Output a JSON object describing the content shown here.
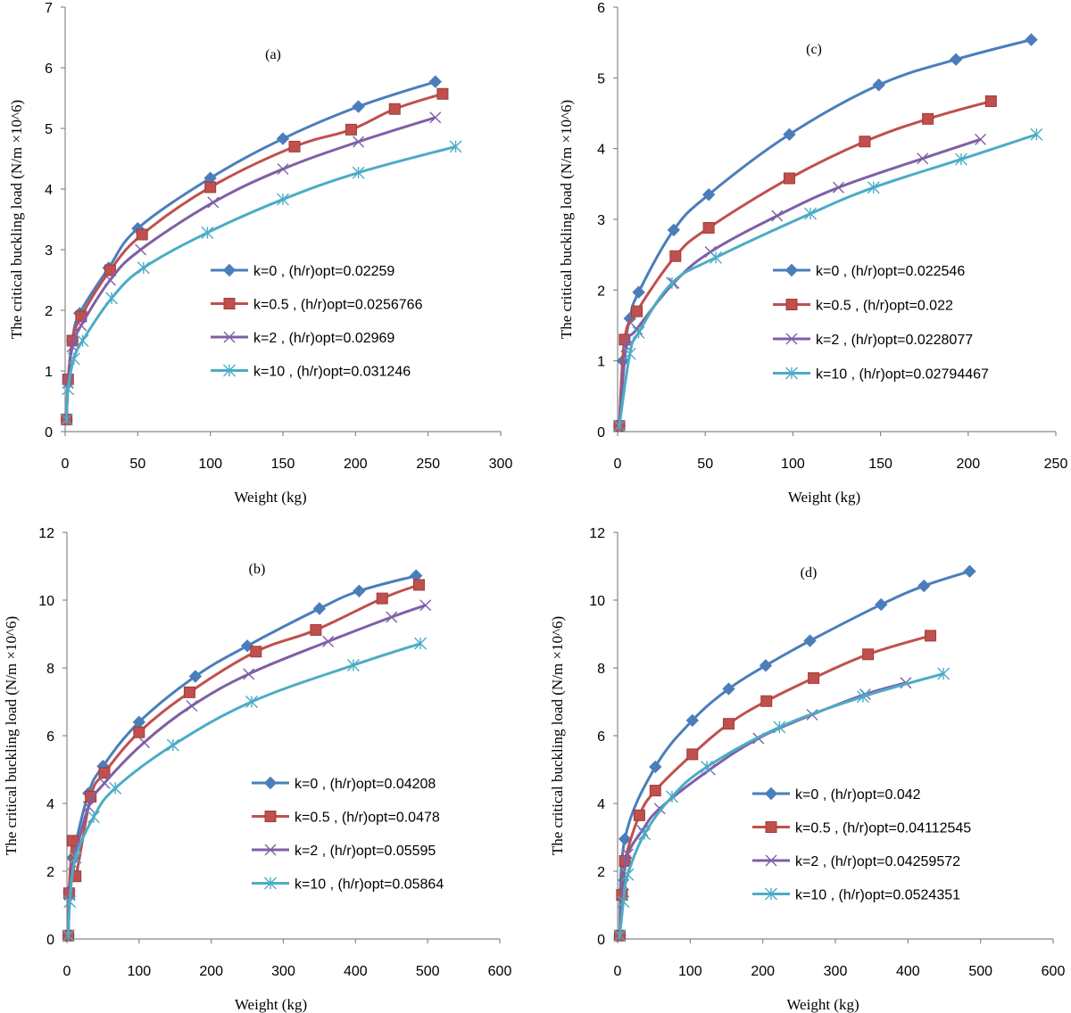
{
  "chart_data": [
    {
      "type": "line",
      "panel": "(a)",
      "xlabel": "Weight (kg)",
      "ylabel": "The critical buckling load (N/m ×10^6)",
      "xlim": [
        0,
        300
      ],
      "xticks": [
        0,
        50,
        100,
        150,
        200,
        250,
        300
      ],
      "ylim": [
        0,
        7
      ],
      "yticks": [
        0,
        1,
        2,
        3,
        4,
        5,
        6,
        7
      ],
      "series": [
        {
          "name": "k=0 , (h/r)opt=0.02259",
          "color": "#4a7ebb",
          "marker": "diamond",
          "x": [
            1,
            2,
            5,
            10,
            30,
            50,
            100,
            150,
            202,
            255
          ],
          "y": [
            0.2,
            0.8,
            1.5,
            1.95,
            2.7,
            3.35,
            4.18,
            4.83,
            5.36,
            5.77
          ]
        },
        {
          "name": "k=0.5 , (h/r)opt=0.0256766",
          "color": "#c0504d",
          "marker": "square",
          "x": [
            1,
            2,
            5,
            11,
            31,
            53,
            100,
            158,
            197,
            227,
            260
          ],
          "y": [
            0.2,
            0.86,
            1.5,
            1.9,
            2.66,
            3.25,
            4.03,
            4.7,
            4.98,
            5.32,
            5.57
          ]
        },
        {
          "name": "k=2 , (h/r)opt=0.02969",
          "color": "#7f5fa6",
          "marker": "x",
          "x": [
            1,
            2,
            5,
            11,
            31,
            52,
            102,
            150,
            202,
            255
          ],
          "y": [
            0.2,
            0.8,
            1.4,
            1.75,
            2.5,
            3.0,
            3.78,
            4.33,
            4.78,
            5.18
          ]
        },
        {
          "name": "k=10 , (h/r)opt=0.031246",
          "color": "#4bacc6",
          "marker": "star",
          "x": [
            1,
            2,
            6,
            12,
            32,
            54,
            98,
            150,
            202,
            269
          ],
          "y": [
            0.2,
            0.7,
            1.2,
            1.5,
            2.2,
            2.7,
            3.28,
            3.83,
            4.27,
            4.7
          ]
        }
      ]
    },
    {
      "type": "line",
      "panel": "(c)",
      "xlabel": "Weight (kg)",
      "ylabel": "The critical buckling load (N/m ×10^6)",
      "xlim": [
        0,
        250
      ],
      "xticks": [
        0,
        50,
        100,
        150,
        200,
        250
      ],
      "ylim": [
        0,
        6
      ],
      "yticks": [
        0,
        1,
        2,
        3,
        4,
        5,
        6
      ],
      "series": [
        {
          "name": "k=0 , (h/r)opt=0.022546",
          "color": "#4a7ebb",
          "marker": "diamond",
          "x": [
            1,
            3,
            7,
            12,
            32,
            52,
            98,
            149,
            193,
            236
          ],
          "y": [
            0.08,
            1.0,
            1.6,
            1.97,
            2.85,
            3.35,
            4.2,
            4.9,
            5.26,
            5.54
          ]
        },
        {
          "name": "k=0.5 , (h/r)opt=0.022",
          "color": "#c0504d",
          "marker": "square",
          "x": [
            1,
            4,
            11,
            33,
            52,
            98,
            141,
            177,
            213
          ],
          "y": [
            0.08,
            1.3,
            1.7,
            2.48,
            2.88,
            3.58,
            4.1,
            4.42,
            4.67
          ]
        },
        {
          "name": "k=2 , (h/r)opt=0.0228077",
          "color": "#7f5fa6",
          "marker": "x",
          "x": [
            1,
            5,
            11,
            32,
            53,
            91,
            126,
            174,
            207
          ],
          "y": [
            0.08,
            1.2,
            1.45,
            2.1,
            2.54,
            3.05,
            3.45,
            3.86,
            4.13
          ]
        },
        {
          "name": "k=10 , (h/r)opt=0.02794467",
          "color": "#4bacc6",
          "marker": "star",
          "x": [
            1,
            7,
            12,
            31,
            56,
            110,
            146,
            196,
            239
          ],
          "y": [
            0.08,
            1.1,
            1.4,
            2.1,
            2.46,
            3.08,
            3.45,
            3.85,
            4.2
          ]
        }
      ]
    },
    {
      "type": "line",
      "panel": "(b)",
      "xlabel": "Weight (kg)",
      "ylabel": "The critical buckling load (N/m ×10^6)",
      "xlim": [
        0,
        600
      ],
      "xticks": [
        0,
        100,
        200,
        300,
        400,
        500,
        600
      ],
      "ylim": [
        0,
        12
      ],
      "yticks": [
        0,
        2,
        4,
        6,
        8,
        10,
        12
      ],
      "series": [
        {
          "name": "k=0 , (h/r)opt=0.04208",
          "color": "#4a7ebb",
          "marker": "diamond",
          "x": [
            2,
            3,
            8,
            30,
            50,
            100,
            178,
            250,
            350,
            405,
            484
          ],
          "y": [
            0.1,
            1.4,
            2.4,
            4.3,
            5.1,
            6.4,
            7.75,
            8.65,
            9.75,
            10.27,
            10.72
          ]
        },
        {
          "name": "k=0.5 , (h/r)opt=0.0478",
          "color": "#c0504d",
          "marker": "square",
          "x": [
            2,
            3,
            8,
            12,
            33,
            52,
            100,
            170,
            262,
            345,
            437,
            488
          ],
          "y": [
            0.1,
            1.35,
            2.9,
            1.85,
            4.2,
            4.9,
            6.1,
            7.28,
            8.48,
            9.12,
            10.05,
            10.45
          ]
        },
        {
          "name": "k=2 , (h/r)opt=0.05595",
          "color": "#7f5fa6",
          "marker": "x",
          "x": [
            2,
            4,
            9,
            30,
            52,
            107,
            173,
            252,
            362,
            450,
            497
          ],
          "y": [
            0.1,
            1.3,
            2.2,
            3.9,
            4.6,
            5.8,
            6.88,
            7.82,
            8.78,
            9.5,
            9.85
          ]
        },
        {
          "name": "k=10 , (h/r)opt=0.05864",
          "color": "#4bacc6",
          "marker": "star",
          "x": [
            2,
            4,
            12,
            37,
            67,
            147,
            256,
            397,
            490
          ],
          "y": [
            0.1,
            1.1,
            2.4,
            3.6,
            4.45,
            5.72,
            7.0,
            8.08,
            8.72
          ]
        }
      ]
    },
    {
      "type": "line",
      "panel": "(d)",
      "xlabel": "Weight (kg)",
      "ylabel": "The critical buckling load (N/m ×10^6)",
      "xlim": [
        0,
        600
      ],
      "xticks": [
        0,
        100,
        200,
        300,
        400,
        500,
        600
      ],
      "ylim": [
        0,
        12
      ],
      "yticks": [
        0,
        2,
        4,
        6,
        8,
        10,
        12
      ],
      "series": [
        {
          "name": "k=0 , (h/r)opt=0.042",
          "color": "#4a7ebb",
          "marker": "diamond",
          "x": [
            3,
            10,
            52,
            103,
            153,
            204,
            265,
            363,
            422,
            485
          ],
          "y": [
            0.1,
            2.95,
            5.08,
            6.45,
            7.38,
            8.07,
            8.8,
            9.87,
            10.42,
            10.85
          ]
        },
        {
          "name": "k=0.5 , (h/r)opt=0.04112545",
          "color": "#c0504d",
          "marker": "square",
          "x": [
            3,
            6,
            10,
            30,
            52,
            103,
            153,
            205,
            270,
            345,
            431
          ],
          "y": [
            0.1,
            1.3,
            2.3,
            3.65,
            4.38,
            5.45,
            6.35,
            7.02,
            7.7,
            8.4,
            8.95
          ]
        },
        {
          "name": "k=2 , (h/r)opt=0.04259572",
          "color": "#7f5fa6",
          "marker": "x",
          "x": [
            3,
            8,
            14,
            34,
            58,
            127,
            194,
            268,
            341,
            397
          ],
          "y": [
            0.1,
            1.6,
            2.5,
            3.2,
            3.85,
            5.0,
            5.92,
            6.62,
            7.22,
            7.56
          ]
        },
        {
          "name": "k=10 , (h/r)opt=0.0524351",
          "color": "#4bacc6",
          "marker": "star",
          "x": [
            3,
            8,
            14,
            37,
            75,
            123,
            223,
            338,
            449
          ],
          "y": [
            0.1,
            1.1,
            1.9,
            3.1,
            4.2,
            5.08,
            6.25,
            7.15,
            7.83
          ]
        }
      ]
    }
  ]
}
